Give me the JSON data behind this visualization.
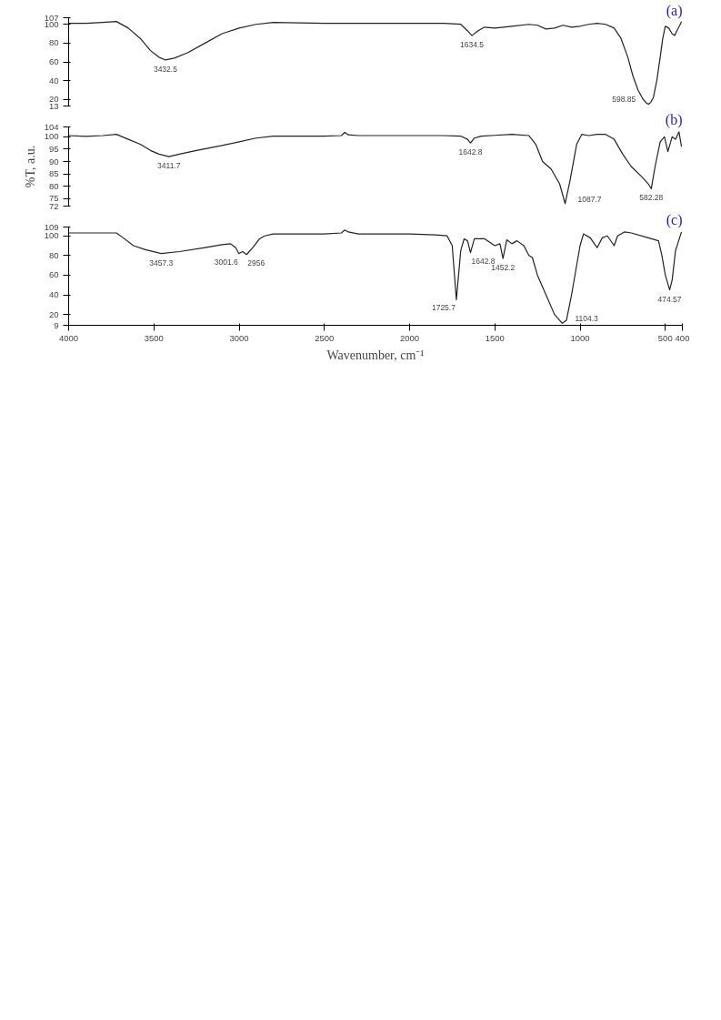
{
  "chart_data": [
    {
      "type": "line",
      "title": "(a)",
      "xlim": [
        4000,
        400
      ],
      "xticks": [
        4000,
        3500,
        3000,
        2500,
        2000,
        1500,
        1000,
        500,
        400
      ],
      "ylim": [
        13,
        107
      ],
      "yticks": [
        13,
        20,
        40,
        60,
        80,
        100,
        107
      ],
      "tick_labels": "y",
      "grid": false,
      "series": [
        {
          "color": "#222222",
          "x": [
            4000,
            3900,
            3800,
            3720,
            3650,
            3580,
            3520,
            3470,
            3432,
            3380,
            3300,
            3200,
            3100,
            3000,
            2900,
            2800,
            2500,
            2000,
            1800,
            1700,
            1660,
            1634,
            1600,
            1560,
            1500,
            1400,
            1300,
            1250,
            1200,
            1150,
            1100,
            1050,
            1000,
            950,
            900,
            850,
            800,
            760,
            720,
            690,
            660,
            630,
            610,
            598,
            585,
            570,
            550,
            530,
            515,
            500,
            480,
            460,
            445,
            430,
            415,
            405
          ],
          "values": [
            101,
            101,
            102,
            103,
            96,
            85,
            72,
            65,
            62,
            64,
            70,
            80,
            90,
            96,
            100,
            102,
            101,
            101,
            101,
            100,
            93,
            88,
            93,
            97,
            96,
            98,
            100,
            99,
            95,
            96,
            99,
            97,
            98,
            100,
            101,
            100,
            96,
            85,
            65,
            45,
            30,
            20,
            16,
            15,
            17,
            22,
            40,
            65,
            85,
            98,
            96,
            90,
            88,
            94,
            99,
            103
          ]
        }
      ],
      "annotations": [
        {
          "text": "3432.5",
          "x": 3432.5,
          "y": 62
        },
        {
          "text": "1634.5",
          "x": 1634.5,
          "y": 88
        },
        {
          "text": "598.85",
          "x": 598.85,
          "y": 15
        }
      ]
    },
    {
      "type": "line",
      "title": "(b)",
      "ylabel": "%T, a.u.",
      "xlim": [
        4000,
        400
      ],
      "xticks": [
        4000,
        3500,
        3000,
        2500,
        2000,
        1500,
        1000,
        500,
        400
      ],
      "ylim": [
        72,
        104
      ],
      "yticks": [
        72,
        75,
        80,
        85,
        90,
        95,
        100,
        104
      ],
      "tick_labels": "y",
      "grid": false,
      "series": [
        {
          "color": "#222222",
          "x": [
            4000,
            3900,
            3800,
            3720,
            3650,
            3580,
            3520,
            3470,
            3411.7,
            3350,
            3250,
            3100,
            3000,
            2900,
            2800,
            2500,
            2400,
            2380,
            2360,
            2300,
            2000,
            1800,
            1700,
            1660,
            1642.8,
            1620,
            1580,
            1500,
            1400,
            1300,
            1260,
            1220,
            1170,
            1120,
            1087.7,
            1060,
            1020,
            990,
            950,
            900,
            850,
            800,
            750,
            700,
            640,
            600,
            582.28,
            560,
            530,
            505,
            485,
            460,
            440,
            420,
            405
          ],
          "values": [
            100.5,
            100.2,
            100.5,
            101,
            99,
            97,
            94.5,
            93,
            92,
            93,
            94.5,
            96.5,
            98,
            99.5,
            100.3,
            100.3,
            100.5,
            101.8,
            100.8,
            100.5,
            100.5,
            100.5,
            100.3,
            99,
            97.5,
            99.5,
            100.3,
            100.6,
            101,
            100.5,
            97,
            90,
            87,
            81,
            73,
            82,
            97,
            101,
            100.5,
            101,
            101,
            99,
            93,
            88,
            84,
            81,
            79,
            88,
            98,
            100,
            94,
            100,
            99,
            102,
            96
          ]
        }
      ],
      "annotations": [
        {
          "text": "3411.7",
          "x": 3411.7,
          "y": 92
        },
        {
          "text": "1642.8",
          "x": 1642.8,
          "y": 97.5
        },
        {
          "text": "1087.7",
          "x": 1087.7,
          "y": 73
        },
        {
          "text": "582.28",
          "x": 582.28,
          "y": 79
        }
      ]
    },
    {
      "type": "line",
      "title": "(c)",
      "xlabel": "Wavenumber, cm⁻¹",
      "xlim": [
        4000,
        400
      ],
      "xticks": [
        4000,
        3500,
        3000,
        2500,
        2000,
        1500,
        1000,
        500,
        400
      ],
      "ylim": [
        9,
        109
      ],
      "yticks": [
        9,
        20,
        40,
        60,
        80,
        100,
        109
      ],
      "grid": false,
      "series": [
        {
          "color": "#222222",
          "x": [
            4000,
            3900,
            3800,
            3720,
            3680,
            3620,
            3550,
            3457.3,
            3350,
            3200,
            3100,
            3050,
            3020,
            3001.6,
            2980,
            2956,
            2920,
            2880,
            2850,
            2800,
            2500,
            2400,
            2380,
            2360,
            2300,
            2000,
            1850,
            1780,
            1750,
            1725.7,
            1700,
            1680,
            1660,
            1642.8,
            1620,
            1560,
            1500,
            1470,
            1452.2,
            1430,
            1400,
            1370,
            1330,
            1300,
            1280,
            1250,
            1200,
            1150,
            1104.3,
            1080,
            1050,
            1000,
            980,
            940,
            900,
            870,
            840,
            800,
            780,
            740,
            700,
            600,
            540,
            520,
            500,
            474.57,
            460,
            440,
            405
          ],
          "values": [
            103,
            103,
            103,
            103,
            98,
            90,
            86,
            82,
            84,
            88,
            91,
            92,
            88,
            82,
            84,
            81,
            88,
            97,
            100,
            102,
            102,
            103,
            106,
            104,
            102,
            102,
            101,
            100,
            90,
            35,
            85,
            97,
            95,
            83,
            97,
            97,
            90,
            92,
            77,
            96,
            92,
            95,
            90,
            80,
            78,
            60,
            40,
            20,
            11,
            14,
            40,
            90,
            102,
            98,
            88,
            98,
            100,
            90,
            100,
            104,
            103,
            98,
            95,
            80,
            60,
            45,
            55,
            85,
            104
          ]
        }
      ],
      "annotations": [
        {
          "text": "3457.3",
          "x": 3457.3,
          "y": 82
        },
        {
          "text": "3001.6",
          "x": 3001.6,
          "y": 82
        },
        {
          "text": "2956",
          "x": 2956,
          "y": 81
        },
        {
          "text": "1725.7",
          "x": 1725.7,
          "y": 35
        },
        {
          "text": "1642.8",
          "x": 1642.8,
          "y": 83
        },
        {
          "text": "1452.2",
          "x": 1452.2,
          "y": 77
        },
        {
          "text": "1104.3",
          "x": 1104.3,
          "y": 11
        },
        {
          "text": "474.57",
          "x": 474.57,
          "y": 45
        }
      ]
    }
  ]
}
